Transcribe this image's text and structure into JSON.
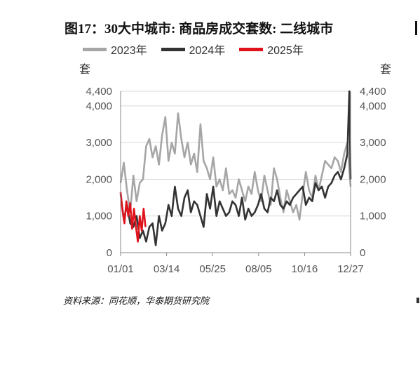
{
  "page": {
    "title": "图17：30大中城市: 商品房成交套数: 二线城市",
    "source": "资料来源：同花顺，华泰期货研究院"
  },
  "chart_data": {
    "type": "line",
    "y_unit_left": "套",
    "y_unit_right": "套",
    "ylim": [
      0,
      4400
    ],
    "y_ticks": [
      0,
      1000,
      2000,
      3000,
      4000,
      4400
    ],
    "y_tick_labels": [
      "0",
      "1,000",
      "2,000",
      "3,000",
      "4,000",
      "4,400"
    ],
    "x_ticks": [
      "01/01",
      "03/14",
      "05/25",
      "08/05",
      "10/16",
      "12/27"
    ],
    "x_tick_days": [
      0,
      72,
      144,
      216,
      288,
      360
    ],
    "grid": true,
    "legend": "top",
    "series": [
      {
        "name": "2023年",
        "color": "#a6a6a6",
        "days": [
          0,
          5,
          10,
          15,
          20,
          25,
          30,
          35,
          40,
          45,
          50,
          55,
          60,
          65,
          70,
          75,
          80,
          85,
          90,
          95,
          100,
          105,
          110,
          115,
          120,
          125,
          130,
          135,
          140,
          145,
          150,
          155,
          160,
          165,
          170,
          175,
          180,
          185,
          190,
          195,
          200,
          205,
          210,
          215,
          220,
          225,
          230,
          235,
          240,
          245,
          250,
          255,
          260,
          265,
          270,
          275,
          280,
          285,
          290,
          295,
          300,
          305,
          310,
          315,
          320,
          325,
          330,
          335,
          340,
          345,
          350,
          355,
          360
        ],
        "values": [
          1900,
          2450,
          1700,
          1100,
          2100,
          1400,
          1900,
          2000,
          2900,
          3100,
          2600,
          2900,
          2400,
          3200,
          3700,
          2500,
          3000,
          2700,
          3800,
          3100,
          2600,
          3000,
          2400,
          2700,
          2200,
          3500,
          2500,
          2300,
          2000,
          2600,
          1800,
          2000,
          1700,
          2300,
          1600,
          1700,
          1500,
          2000,
          1700,
          1400,
          1800,
          1600,
          2200,
          1700,
          1400,
          2100,
          1700,
          1300,
          2300,
          2000,
          1500,
          1100,
          1700,
          1400,
          1100,
          1300,
          900,
          1600,
          2200,
          1700,
          1500,
          2100,
          1700,
          2100,
          2500,
          2400,
          2300,
          2600,
          2500,
          2200,
          2700,
          3000,
          1800
        ]
      },
      {
        "name": "2024年",
        "color": "#333333",
        "days": [
          0,
          5,
          10,
          15,
          20,
          25,
          30,
          35,
          40,
          45,
          50,
          55,
          60,
          65,
          70,
          75,
          80,
          85,
          90,
          95,
          100,
          105,
          110,
          115,
          120,
          125,
          130,
          135,
          140,
          145,
          150,
          155,
          160,
          165,
          170,
          175,
          180,
          185,
          190,
          195,
          200,
          205,
          210,
          215,
          220,
          225,
          230,
          235,
          240,
          245,
          250,
          255,
          260,
          265,
          270,
          275,
          280,
          285,
          290,
          295,
          300,
          305,
          310,
          315,
          320,
          325,
          330,
          335,
          340,
          345,
          350,
          355,
          358,
          360
        ],
        "values": [
          1600,
          900,
          1300,
          800,
          700,
          1000,
          400,
          600,
          300,
          700,
          800,
          200,
          1000,
          600,
          800,
          1300,
          1000,
          1800,
          1200,
          1000,
          1500,
          1700,
          1100,
          1400,
          1300,
          1000,
          700,
          1600,
          1200,
          1800,
          1000,
          1400,
          1200,
          1000,
          1100,
          1400,
          1300,
          1000,
          1500,
          900,
          1200,
          1000,
          1100,
          1300,
          1600,
          1200,
          1100,
          1500,
          1400,
          1700,
          1300,
          1200,
          1400,
          1300,
          1500,
          1600,
          1700,
          1800,
          1300,
          1500,
          1400,
          1900,
          1700,
          1800,
          1500,
          1800,
          1900,
          2100,
          2200,
          2000,
          2300,
          2700,
          4400,
          2000
        ]
      },
      {
        "name": "2025年",
        "color": "#e0121b",
        "days": [
          0,
          3,
          6,
          9,
          12,
          15,
          18,
          21,
          24,
          27,
          30,
          33,
          36,
          39
        ],
        "values": [
          1650,
          1150,
          800,
          1400,
          1000,
          1350,
          650,
          1200,
          700,
          300,
          1000,
          600,
          1200,
          700
        ]
      }
    ]
  }
}
